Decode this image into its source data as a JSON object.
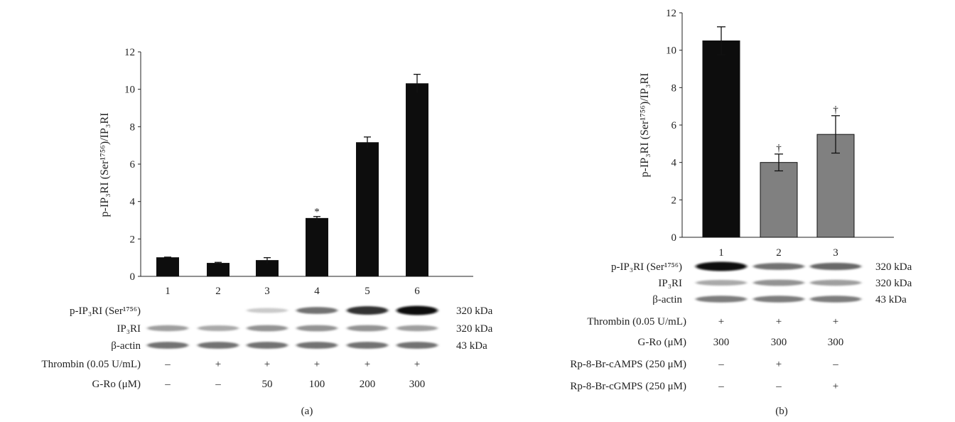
{
  "panels": [
    {
      "id": "a",
      "caption": "(a)",
      "chart_data": {
        "type": "bar",
        "categories": [
          "1",
          "2",
          "3",
          "4",
          "5",
          "6"
        ],
        "values": [
          1.0,
          0.7,
          0.85,
          3.1,
          7.15,
          10.3
        ],
        "errors": [
          0.03,
          0.05,
          0.15,
          0.1,
          0.3,
          0.5
        ],
        "colors": [
          "#0d0d0d",
          "#0d0d0d",
          "#0d0d0d",
          "#0d0d0d",
          "#0d0d0d",
          "#0d0d0d"
        ],
        "significance": [
          "",
          "",
          "",
          "*",
          "",
          ""
        ],
        "ylim": [
          0,
          12
        ],
        "yticks": [
          0,
          2,
          4,
          6,
          8,
          10,
          12
        ],
        "ylabel": "p-IP₃RI (Ser¹⁷⁵⁶)/IP₃RI",
        "grid": false
      },
      "blot_rows": [
        {
          "label": "p-IP₃RI (Ser¹⁷⁵⁶)",
          "size": "320 kDa",
          "intensity": [
            0.0,
            0.0,
            0.15,
            0.55,
            0.85,
            1.0
          ]
        },
        {
          "label": "IP₃RI",
          "size": "320 kDa",
          "intensity": [
            0.35,
            0.3,
            0.4,
            0.4,
            0.4,
            0.35
          ]
        },
        {
          "label": "β-actin",
          "size": "43 kDa",
          "intensity": [
            0.55,
            0.55,
            0.55,
            0.55,
            0.55,
            0.55
          ]
        }
      ],
      "treatment_rows": [
        {
          "label": "Thrombin (0.05 U/mL)",
          "values": [
            "–",
            "+",
            "+",
            "+",
            "+",
            "+"
          ]
        },
        {
          "label": "G-Ro (μM)",
          "values": [
            "–",
            "–",
            "50",
            "100",
            "200",
            "300"
          ]
        }
      ]
    },
    {
      "id": "b",
      "caption": "(b)",
      "chart_data": {
        "type": "bar",
        "categories": [
          "1",
          "2",
          "3"
        ],
        "values": [
          10.5,
          4.0,
          5.5
        ],
        "errors": [
          0.75,
          0.45,
          1.0
        ],
        "colors": [
          "#0d0d0d",
          "#808080",
          "#808080"
        ],
        "significance": [
          "",
          "†",
          "†"
        ],
        "ylim": [
          0,
          12
        ],
        "yticks": [
          0,
          2,
          4,
          6,
          8,
          10,
          12
        ],
        "ylabel": "p-IP₃RI (Ser¹⁷⁵⁶)/IP₃RI",
        "grid": false
      },
      "blot_rows": [
        {
          "label": "p-IP₃RI (Ser¹⁷⁵⁶)",
          "size": "320 kDa",
          "intensity": [
            1.0,
            0.55,
            0.6
          ]
        },
        {
          "label": "IP₃RI",
          "size": "320 kDa",
          "intensity": [
            0.3,
            0.4,
            0.35
          ]
        },
        {
          "label": "β-actin",
          "size": "43 kDa",
          "intensity": [
            0.5,
            0.5,
            0.5
          ]
        }
      ],
      "treatment_rows": [
        {
          "label": "Thrombin (0.05 U/mL)",
          "values": [
            "+",
            "+",
            "+"
          ]
        },
        {
          "label": "G-Ro (μM)",
          "values": [
            "300",
            "300",
            "300"
          ]
        },
        {
          "label": "Rp-8-Br-cAMPS (250 μM)",
          "values": [
            "–",
            "+",
            "–"
          ]
        },
        {
          "label": "Rp-8-Br-cGMPS (250 μM)",
          "values": [
            "–",
            "–",
            "+"
          ]
        }
      ]
    }
  ]
}
